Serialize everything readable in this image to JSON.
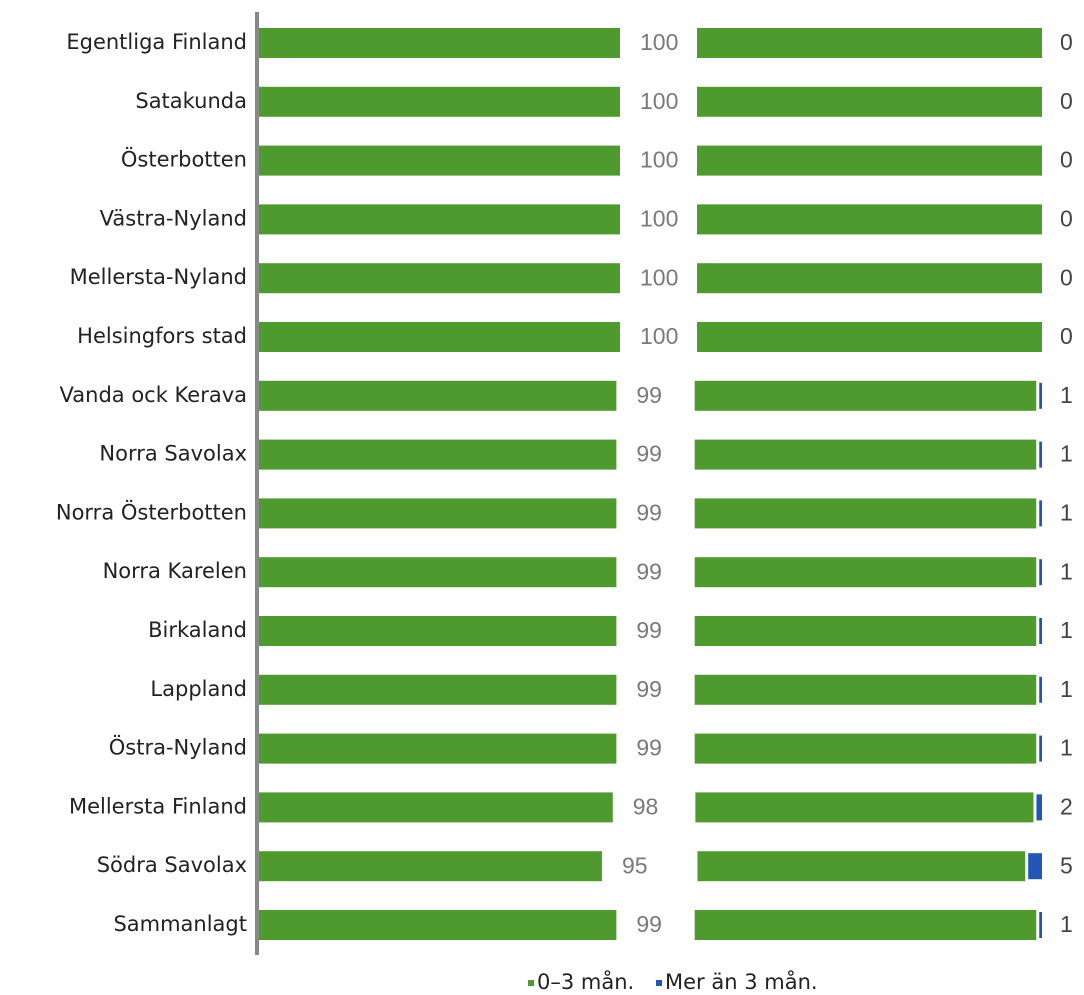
{
  "chart_data": {
    "type": "bar",
    "orientation": "horizontal",
    "categories": [
      "Egentliga Finland",
      "Satakunda",
      "Österbotten",
      "Västra-Nyland",
      "Mellersta-Nyland",
      "Helsingfors stad",
      "Vanda ock Kerava",
      "Norra Savolax",
      "Norra Österbotten",
      "Norra Karelen",
      "Birkaland",
      "Lappland",
      "Östra-Nyland",
      "Mellersta Finland",
      "Södra Savolax",
      "Sammanlagt"
    ],
    "series": [
      {
        "name": "0–3 mån.",
        "color": "#4e9a2e",
        "values": [
          100,
          100,
          100,
          100,
          100,
          100,
          99,
          99,
          99,
          99,
          99,
          99,
          99,
          98,
          95,
          99
        ]
      },
      {
        "name": "Mer än 3 mån.",
        "color": "#2255b5",
        "values": [
          0,
          0,
          0,
          0,
          0,
          0,
          1,
          1,
          1,
          1,
          1,
          1,
          1,
          2,
          5,
          1
        ]
      }
    ]
  }
}
